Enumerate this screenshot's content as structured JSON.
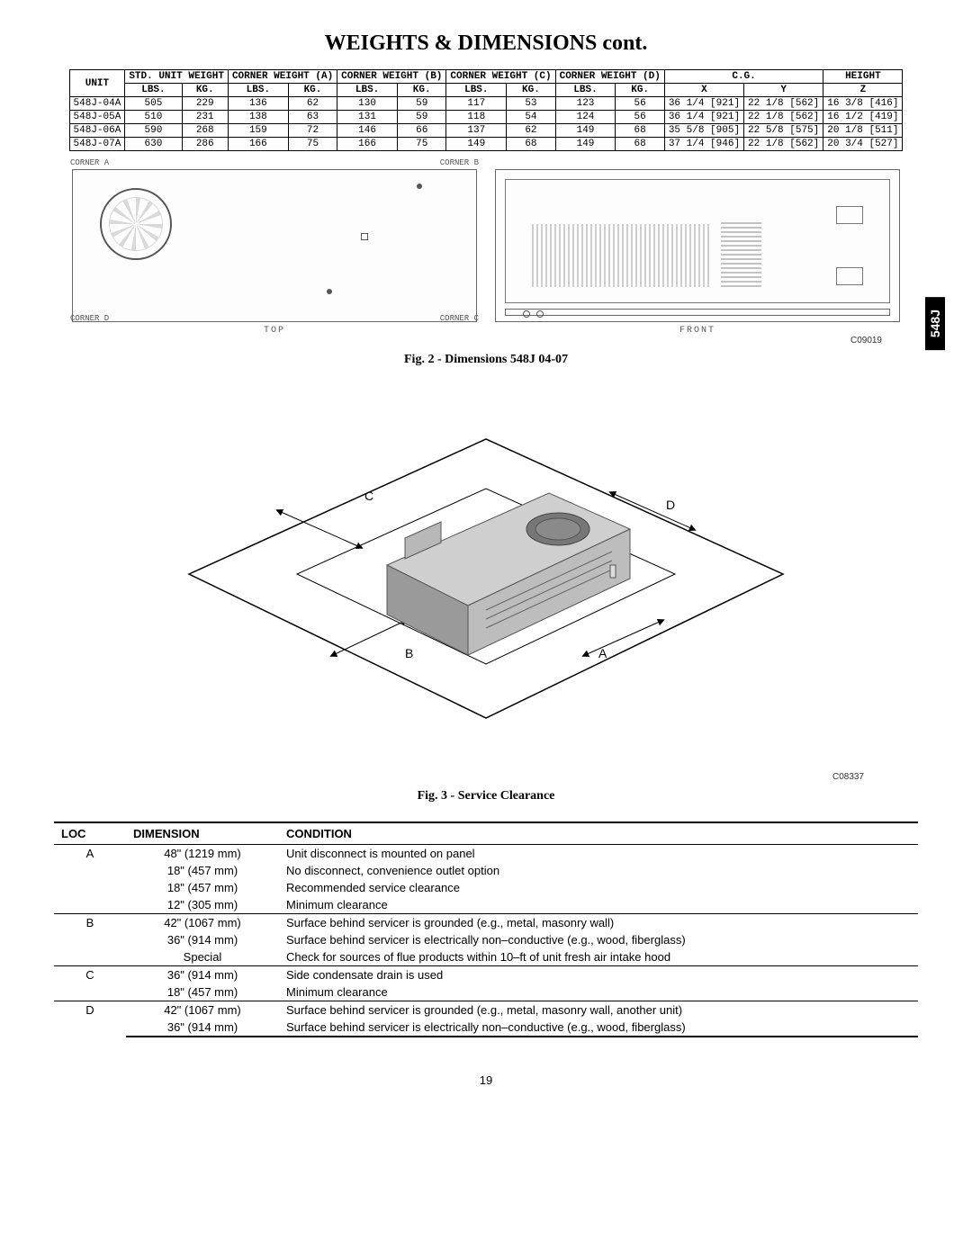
{
  "title": "WEIGHTS & DIMENSIONS cont.",
  "side_tab": "548J",
  "weights_table": {
    "header_row1": [
      "UNIT",
      "STD. UNIT WEIGHT",
      "CORNER WEIGHT (A)",
      "CORNER WEIGHT (B)",
      "CORNER WEIGHT (C)",
      "CORNER WEIGHT (D)",
      "C.G.",
      "HEIGHT"
    ],
    "sub_lbs_kg": [
      "LBS.",
      "KG."
    ],
    "cg_sub": [
      "X",
      "Y"
    ],
    "height_sub": "Z",
    "rows": [
      {
        "unit": "548J-04A",
        "std": [
          "505",
          "229"
        ],
        "a": [
          "136",
          "62"
        ],
        "b": [
          "130",
          "59"
        ],
        "c": [
          "117",
          "53"
        ],
        "d": [
          "123",
          "56"
        ],
        "x": "36 1/4 [921]",
        "y": "22 1/8 [562]",
        "z": "16 3/8 [416]"
      },
      {
        "unit": "548J-05A",
        "std": [
          "510",
          "231"
        ],
        "a": [
          "138",
          "63"
        ],
        "b": [
          "131",
          "59"
        ],
        "c": [
          "118",
          "54"
        ],
        "d": [
          "124",
          "56"
        ],
        "x": "36 1/4 [921]",
        "y": "22 1/8 [562]",
        "z": "16 1/2 [419]"
      },
      {
        "unit": "548J-06A",
        "std": [
          "590",
          "268"
        ],
        "a": [
          "159",
          "72"
        ],
        "b": [
          "146",
          "66"
        ],
        "c": [
          "137",
          "62"
        ],
        "d": [
          "149",
          "68"
        ],
        "x": "35 5/8 [905]",
        "y": "22 5/8 [575]",
        "z": "20 1/8 [511]"
      },
      {
        "unit": "548J-07A",
        "std": [
          "630",
          "286"
        ],
        "a": [
          "166",
          "75"
        ],
        "b": [
          "166",
          "75"
        ],
        "c": [
          "149",
          "68"
        ],
        "d": [
          "149",
          "68"
        ],
        "x": "37 1/4 [946]",
        "y": "22 1/8 [562]",
        "z": "20 3/4 [527]"
      }
    ]
  },
  "corners": {
    "a": "CORNER A",
    "b": "CORNER B",
    "c": "CORNER C",
    "d": "CORNER D"
  },
  "view_labels": {
    "top": "TOP",
    "front": "FRONT"
  },
  "diagram_code": "C09019",
  "fig2_caption": "Fig. 2 - Dimensions 548J 04-07",
  "iso_letters": {
    "a": "A",
    "b": "B",
    "c": "C",
    "d": "D"
  },
  "iso_code": "C08337",
  "fig3_caption": "Fig. 3 - Service Clearance",
  "clearance_table": {
    "headers": [
      "LOC",
      "DIMENSION",
      "CONDITION"
    ],
    "groups": [
      {
        "loc": "A",
        "rows": [
          {
            "dim": "48\" (1219 mm)",
            "cond": "Unit disconnect is mounted on panel"
          },
          {
            "dim": "18\" (457 mm)",
            "cond": "No disconnect, convenience outlet option"
          },
          {
            "dim": "18\" (457 mm)",
            "cond": "Recommended service clearance"
          },
          {
            "dim": "12\" (305 mm)",
            "cond": "Minimum clearance"
          }
        ]
      },
      {
        "loc": "B",
        "rows": [
          {
            "dim": "42\" (1067 mm)",
            "cond": "Surface behind servicer is grounded (e.g., metal, masonry wall)"
          },
          {
            "dim": "36\" (914 mm)",
            "cond": "Surface behind servicer is electrically non–conductive (e.g., wood, fiberglass)"
          },
          {
            "dim": "Special",
            "cond": "Check for sources of flue products within 10–ft of unit fresh air intake hood"
          }
        ]
      },
      {
        "loc": "C",
        "rows": [
          {
            "dim": "36\" (914 mm)",
            "cond": "Side condensate drain is used"
          },
          {
            "dim": "18\" (457 mm)",
            "cond": "Minimum clearance"
          }
        ]
      },
      {
        "loc": "D",
        "rows": [
          {
            "dim": "42\" (1067 mm)",
            "cond": "Surface behind servicer is grounded (e.g., metal, masonry wall, another unit)"
          },
          {
            "dim": "36\" (914 mm)",
            "cond": "Surface behind servicer is electrically non–conductive (e.g., wood, fiberglass)"
          }
        ]
      }
    ]
  },
  "page_number": "19"
}
